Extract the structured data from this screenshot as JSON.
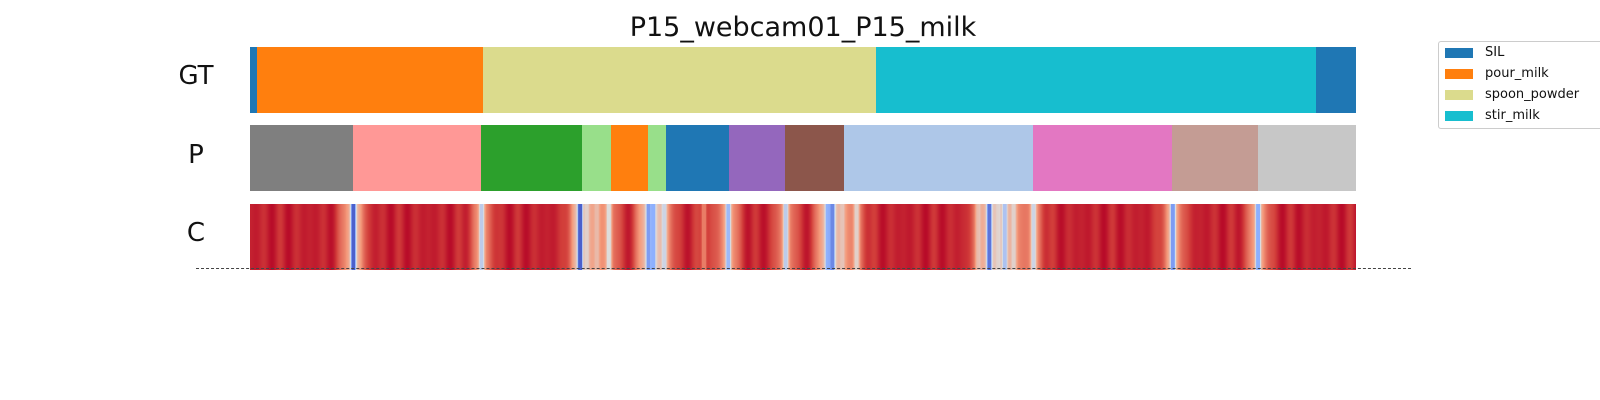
{
  "chart_data": {
    "type": "segmentation-timeline",
    "title": "P15_webcam01_P15_milk",
    "x_range": [
      0,
      1
    ],
    "rows": [
      {
        "label": "GT",
        "segments": [
          {
            "class": "SIL",
            "start": 0.0,
            "end": 0.006
          },
          {
            "class": "pour_milk",
            "start": 0.006,
            "end": 0.211
          },
          {
            "class": "spoon_powder",
            "start": 0.211,
            "end": 0.566
          },
          {
            "class": "stir_milk",
            "start": 0.566,
            "end": 0.964
          },
          {
            "class": "SIL",
            "start": 0.964,
            "end": 1.0
          }
        ]
      },
      {
        "label": "P",
        "segments": [
          {
            "color": "#7f7f7f",
            "start": 0.0,
            "end": 0.093
          },
          {
            "color": "#ff9896",
            "start": 0.093,
            "end": 0.209
          },
          {
            "color": "#2ca02c",
            "start": 0.209,
            "end": 0.3
          },
          {
            "color": "#98df8a",
            "start": 0.3,
            "end": 0.326
          },
          {
            "color": "#ff7f0e",
            "start": 0.326,
            "end": 0.36
          },
          {
            "color": "#98df8a",
            "start": 0.36,
            "end": 0.376
          },
          {
            "color": "#1f77b4",
            "start": 0.376,
            "end": 0.433
          },
          {
            "color": "#9467bd",
            "start": 0.433,
            "end": 0.484
          },
          {
            "color": "#8c564b",
            "start": 0.484,
            "end": 0.537
          },
          {
            "color": "#aec7e8",
            "start": 0.537,
            "end": 0.708
          },
          {
            "color": "#e377c2",
            "start": 0.708,
            "end": 0.834
          },
          {
            "color": "#c49c94",
            "start": 0.834,
            "end": 0.911
          },
          {
            "color": "#c7c7c7",
            "start": 0.911,
            "end": 1.0
          }
        ]
      },
      {
        "label": "C",
        "colormap": "coolwarm",
        "base_value": 0.95,
        "dips": [
          {
            "pos": 0.093,
            "value": 0.05
          },
          {
            "pos": 0.209,
            "value": 0.4
          },
          {
            "pos": 0.298,
            "value": 0.05
          },
          {
            "pos": 0.304,
            "value": 0.55
          },
          {
            "pos": 0.313,
            "value": 0.65
          },
          {
            "pos": 0.324,
            "value": 0.5
          },
          {
            "pos": 0.36,
            "value": 0.2
          },
          {
            "pos": 0.364,
            "value": 0.25
          },
          {
            "pos": 0.374,
            "value": 0.45
          },
          {
            "pos": 0.41,
            "value": 0.8
          },
          {
            "pos": 0.432,
            "value": 0.3
          },
          {
            "pos": 0.484,
            "value": 0.4
          },
          {
            "pos": 0.522,
            "value": 0.3
          },
          {
            "pos": 0.526,
            "value": 0.15
          },
          {
            "pos": 0.535,
            "value": 0.6
          },
          {
            "pos": 0.548,
            "value": 0.55
          },
          {
            "pos": 0.658,
            "value": 0.7
          },
          {
            "pos": 0.668,
            "value": 0.1
          },
          {
            "pos": 0.676,
            "value": 0.6
          },
          {
            "pos": 0.682,
            "value": 0.35
          },
          {
            "pos": 0.69,
            "value": 0.55
          },
          {
            "pos": 0.708,
            "value": 0.45
          },
          {
            "pos": 0.834,
            "value": 0.2
          },
          {
            "pos": 0.911,
            "value": 0.25
          }
        ]
      }
    ],
    "legend": {
      "placement": "top-right",
      "items": [
        {
          "label": "SIL",
          "color": "#1f77b4"
        },
        {
          "label": "pour_milk",
          "color": "#ff7f0e"
        },
        {
          "label": "spoon_powder",
          "color": "#dbdb8d"
        },
        {
          "label": "stir_milk",
          "color": "#17becf"
        }
      ]
    }
  }
}
